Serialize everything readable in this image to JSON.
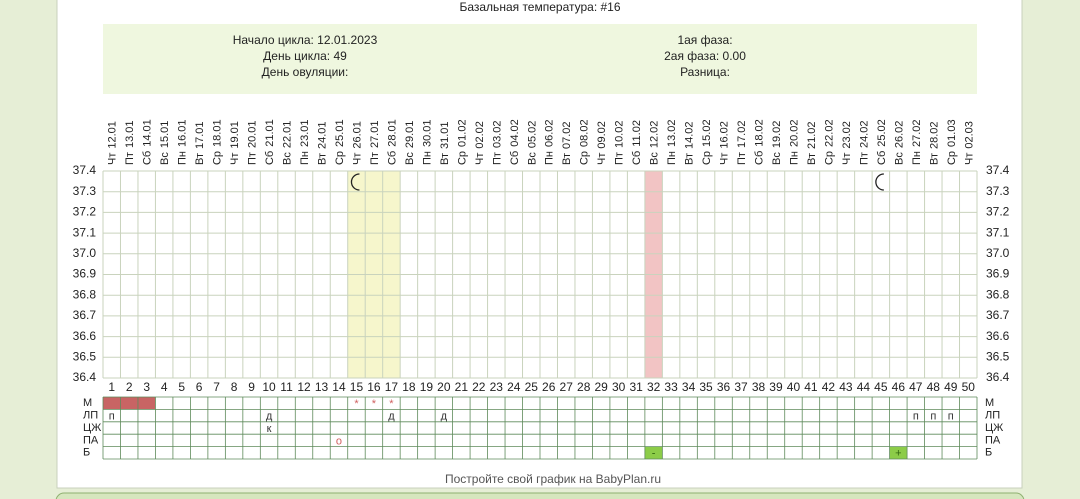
{
  "title": "Базальная температура: #16",
  "info": {
    "left": [
      "Начало цикла: 12.01.2023",
      "День цикла: 49",
      "День овуляции:"
    ],
    "right": [
      "1ая фаза:",
      "2ая фаза: 0.00",
      "Разница:"
    ]
  },
  "days": [
    {
      "weekday": "Чт",
      "date": "12.01"
    },
    {
      "weekday": "Пт",
      "date": "13.01"
    },
    {
      "weekday": "Сб",
      "date": "14.01"
    },
    {
      "weekday": "Вс",
      "date": "15.01"
    },
    {
      "weekday": "Пн",
      "date": "16.01"
    },
    {
      "weekday": "Вт",
      "date": "17.01"
    },
    {
      "weekday": "Ср",
      "date": "18.01"
    },
    {
      "weekday": "Чт",
      "date": "19.01"
    },
    {
      "weekday": "Пт",
      "date": "20.01"
    },
    {
      "weekday": "Сб",
      "date": "21.01"
    },
    {
      "weekday": "Вс",
      "date": "22.01"
    },
    {
      "weekday": "Пн",
      "date": "23.01"
    },
    {
      "weekday": "Вт",
      "date": "24.01"
    },
    {
      "weekday": "Ср",
      "date": "25.01"
    },
    {
      "weekday": "Чт",
      "date": "26.01"
    },
    {
      "weekday": "Пт",
      "date": "27.01"
    },
    {
      "weekday": "Сб",
      "date": "28.01"
    },
    {
      "weekday": "Вс",
      "date": "29.01"
    },
    {
      "weekday": "Пн",
      "date": "30.01"
    },
    {
      "weekday": "Вт",
      "date": "31.01"
    },
    {
      "weekday": "Ср",
      "date": "01.02"
    },
    {
      "weekday": "Чт",
      "date": "02.02"
    },
    {
      "weekday": "Пт",
      "date": "03.02"
    },
    {
      "weekday": "Сб",
      "date": "04.02"
    },
    {
      "weekday": "Вс",
      "date": "05.02"
    },
    {
      "weekday": "Пн",
      "date": "06.02"
    },
    {
      "weekday": "Вт",
      "date": "07.02"
    },
    {
      "weekday": "Ср",
      "date": "08.02"
    },
    {
      "weekday": "Чт",
      "date": "09.02"
    },
    {
      "weekday": "Пт",
      "date": "10.02"
    },
    {
      "weekday": "Сб",
      "date": "11.02"
    },
    {
      "weekday": "Вс",
      "date": "12.02"
    },
    {
      "weekday": "Пн",
      "date": "13.02"
    },
    {
      "weekday": "Вт",
      "date": "14.02"
    },
    {
      "weekday": "Ср",
      "date": "15.02"
    },
    {
      "weekday": "Чт",
      "date": "16.02"
    },
    {
      "weekday": "Пт",
      "date": "17.02"
    },
    {
      "weekday": "Сб",
      "date": "18.02"
    },
    {
      "weekday": "Вс",
      "date": "19.02"
    },
    {
      "weekday": "Пн",
      "date": "20.02"
    },
    {
      "weekday": "Вт",
      "date": "21.02"
    },
    {
      "weekday": "Ср",
      "date": "22.02"
    },
    {
      "weekday": "Чт",
      "date": "23.02"
    },
    {
      "weekday": "Пт",
      "date": "24.02"
    },
    {
      "weekday": "Сб",
      "date": "25.02"
    },
    {
      "weekday": "Вс",
      "date": "26.02"
    },
    {
      "weekday": "Пн",
      "date": "27.02"
    },
    {
      "weekday": "Вт",
      "date": "28.02"
    },
    {
      "weekday": "Ср",
      "date": "01.03"
    },
    {
      "weekday": "Чт",
      "date": "02.03"
    }
  ],
  "day_numbers": [
    1,
    2,
    3,
    4,
    5,
    6,
    7,
    8,
    9,
    10,
    11,
    12,
    13,
    14,
    15,
    16,
    17,
    18,
    19,
    20,
    21,
    22,
    23,
    24,
    25,
    26,
    27,
    28,
    29,
    30,
    31,
    32,
    33,
    34,
    35,
    36,
    37,
    38,
    39,
    40,
    41,
    42,
    43,
    44,
    45,
    46,
    47,
    48,
    49,
    50
  ],
  "temperature_ticks": [
    "37.4",
    "37.3",
    "37.2",
    "37.1",
    "37.0",
    "36.9",
    "36.8",
    "36.7",
    "36.6",
    "36.5",
    "36.4"
  ],
  "highlights": [
    {
      "days": [
        15,
        16,
        17
      ],
      "color": "#f6f6cc"
    },
    {
      "days": [
        32
      ],
      "color": "#f2c4c4"
    }
  ],
  "moon_days": [
    15,
    45
  ],
  "row_labels": [
    "М",
    "ЛП",
    "ЦЖ",
    "ПА",
    "Б"
  ],
  "rows": [
    {
      "filled": [
        1,
        2,
        3
      ],
      "fill_color": "#c86464",
      "entries": [
        {
          "day": 15,
          "text": "*",
          "color": "#d06060"
        },
        {
          "day": 16,
          "text": "*",
          "color": "#d06060"
        },
        {
          "day": 17,
          "text": "*",
          "color": "#d06060"
        }
      ]
    },
    {
      "filled": [],
      "entries": [
        {
          "day": 1,
          "text": "п",
          "color": "#333333"
        },
        {
          "day": 10,
          "text": "д",
          "color": "#333333"
        },
        {
          "day": 17,
          "text": "д",
          "color": "#333333"
        },
        {
          "day": 20,
          "text": "д",
          "color": "#333333"
        },
        {
          "day": 47,
          "text": "п",
          "color": "#333333"
        },
        {
          "day": 48,
          "text": "п",
          "color": "#333333"
        },
        {
          "day": 49,
          "text": "п",
          "color": "#333333"
        }
      ]
    },
    {
      "filled": [],
      "entries": [
        {
          "day": 10,
          "text": "к",
          "color": "#333333"
        }
      ]
    },
    {
      "filled": [],
      "entries": [
        {
          "day": 14,
          "text": "о",
          "color": "#d06060"
        }
      ]
    },
    {
      "filled": [
        32,
        46
      ],
      "fill_color": "#8ccc48",
      "entries": [
        {
          "day": 32,
          "text": "-",
          "color": "#336611"
        },
        {
          "day": 46,
          "text": "+",
          "color": "#336611"
        }
      ]
    }
  ],
  "footer": "Постройте свой график на BabyPlan.ru"
}
